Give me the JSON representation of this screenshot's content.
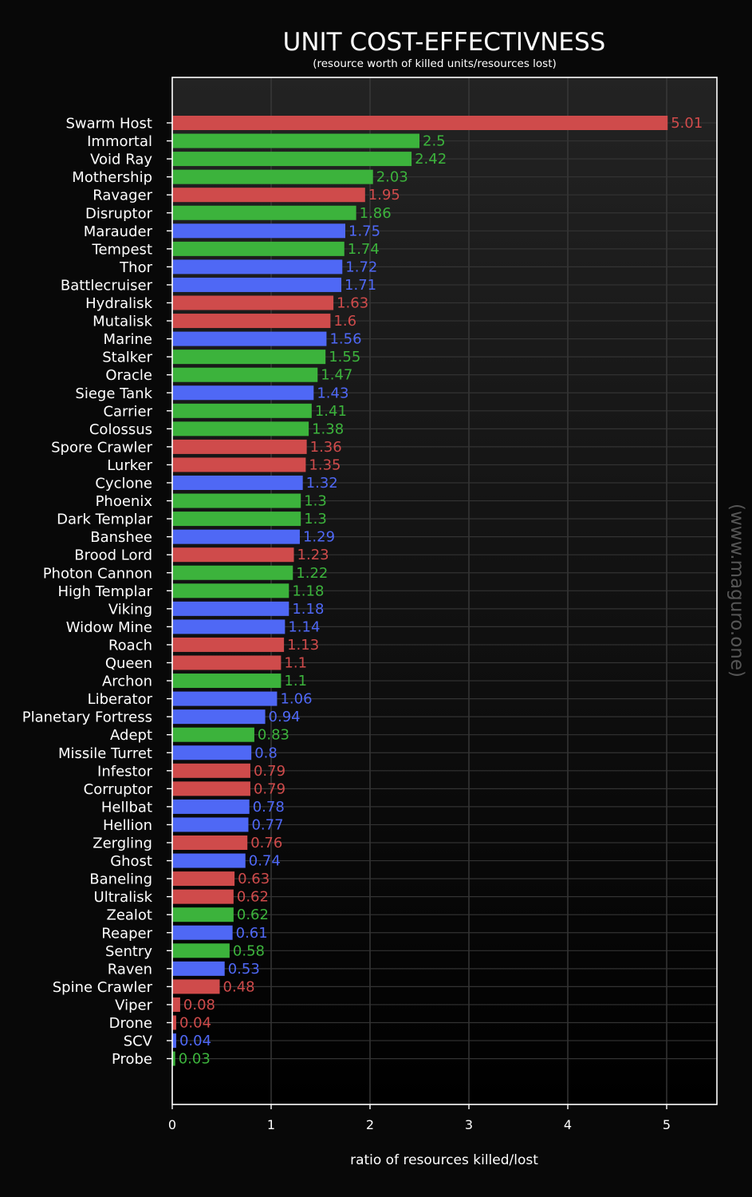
{
  "chart_data": {
    "type": "bar",
    "orientation": "horizontal",
    "title": "UNIT COST-EFFECTIVNESS",
    "subtitle": "(resource worth of killed units/resources lost)",
    "xlabel": "ratio of resources killed/lost",
    "ylabel": "",
    "xlim": [
      0,
      5.5
    ],
    "xticks": [
      "0",
      "1",
      "2",
      "3",
      "4",
      "5"
    ],
    "grid": true,
    "watermark": "(www.maguro.one)",
    "race_colors": {
      "zerg": "#cf4b4b",
      "protoss": "#3cb33c",
      "terran": "#4f68f5"
    },
    "categories": [
      "Swarm Host",
      "Immortal",
      "Void Ray",
      "Mothership",
      "Ravager",
      "Disruptor",
      "Marauder",
      "Tempest",
      "Thor",
      "Battlecruiser",
      "Hydralisk",
      "Mutalisk",
      "Marine",
      "Stalker",
      "Oracle",
      "Siege Tank",
      "Carrier",
      "Colossus",
      "Spore Crawler",
      "Lurker",
      "Cyclone",
      "Phoenix",
      "Dark Templar",
      "Banshee",
      "Brood Lord",
      "Photon Cannon",
      "High Templar",
      "Viking",
      "Widow Mine",
      "Roach",
      "Queen",
      "Archon",
      "Liberator",
      "Planetary Fortress",
      "Adept",
      "Missile Turret",
      "Infestor",
      "Corruptor",
      "Hellbat",
      "Hellion",
      "Zergling",
      "Ghost",
      "Baneling",
      "Ultralisk",
      "Zealot",
      "Reaper",
      "Sentry",
      "Raven",
      "Spine Crawler",
      "Viper",
      "Drone",
      "SCV",
      "Probe"
    ],
    "values": [
      5.01,
      2.5,
      2.42,
      2.03,
      1.95,
      1.86,
      1.75,
      1.74,
      1.72,
      1.71,
      1.63,
      1.6,
      1.56,
      1.55,
      1.47,
      1.43,
      1.41,
      1.38,
      1.36,
      1.35,
      1.32,
      1.3,
      1.3,
      1.29,
      1.23,
      1.22,
      1.18,
      1.18,
      1.14,
      1.13,
      1.1,
      1.1,
      1.06,
      0.94,
      0.83,
      0.8,
      0.79,
      0.79,
      0.78,
      0.77,
      0.76,
      0.74,
      0.63,
      0.62,
      0.62,
      0.61,
      0.58,
      0.53,
      0.48,
      0.08,
      0.04,
      0.04,
      0.03
    ],
    "value_labels": [
      "5.01",
      "2.5",
      "2.42",
      "2.03",
      "1.95",
      "1.86",
      "1.75",
      "1.74",
      "1.72",
      "1.71",
      "1.63",
      "1.6",
      "1.56",
      "1.55",
      "1.47",
      "1.43",
      "1.41",
      "1.38",
      "1.36",
      "1.35",
      "1.32",
      "1.3",
      "1.3",
      "1.29",
      "1.23",
      "1.22",
      "1.18",
      "1.18",
      "1.14",
      "1.13",
      "1.1",
      "1.1",
      "1.06",
      "0.94",
      "0.83",
      "0.8",
      "0.79",
      "0.79",
      "0.78",
      "0.77",
      "0.76",
      "0.74",
      "0.63",
      "0.62",
      "0.62",
      "0.61",
      "0.58",
      "0.53",
      "0.48",
      "0.08",
      "0.04",
      "0.04",
      "0.03"
    ],
    "races": [
      "zerg",
      "protoss",
      "protoss",
      "protoss",
      "zerg",
      "protoss",
      "terran",
      "protoss",
      "terran",
      "terran",
      "zerg",
      "zerg",
      "terran",
      "protoss",
      "protoss",
      "terran",
      "protoss",
      "protoss",
      "zerg",
      "zerg",
      "terran",
      "protoss",
      "protoss",
      "terran",
      "zerg",
      "protoss",
      "protoss",
      "terran",
      "terran",
      "zerg",
      "zerg",
      "protoss",
      "terran",
      "terran",
      "protoss",
      "terran",
      "zerg",
      "zerg",
      "terran",
      "terran",
      "zerg",
      "terran",
      "zerg",
      "zerg",
      "protoss",
      "terran",
      "protoss",
      "terran",
      "zerg",
      "zerg",
      "zerg",
      "terran",
      "protoss"
    ]
  }
}
